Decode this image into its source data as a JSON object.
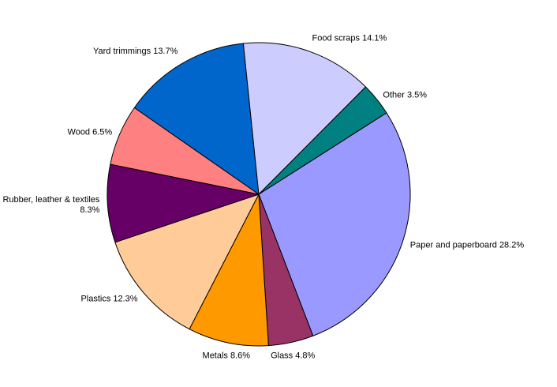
{
  "chart_data": {
    "type": "pie",
    "title": "",
    "slices": [
      {
        "label": "Paper and paperboard 28.2%",
        "value": 28.2,
        "color": "#9999ff"
      },
      {
        "label": "Glass 4.8%",
        "value": 4.8,
        "color": "#993366"
      },
      {
        "label": "Metals 8.6%",
        "value": 8.6,
        "color": "#ff9900"
      },
      {
        "label": "Plastics 12.3%",
        "value": 12.3,
        "color": "#ffcc99"
      },
      {
        "label": "Rubber, leather & textiles 8.3%",
        "label_lines": [
          "Rubber, leather & textiles",
          "8.3%"
        ],
        "value": 8.3,
        "color": "#660066"
      },
      {
        "label": "Wood 6.5%",
        "value": 6.5,
        "color": "#ff8080"
      },
      {
        "label": "Yard trimmings 13.7%",
        "value": 13.7,
        "color": "#0066cc"
      },
      {
        "label": "Food scraps 14.1%",
        "value": 14.1,
        "color": "#ccccff"
      },
      {
        "label": "Other 3.5%",
        "value": 3.5,
        "color": "#008080"
      }
    ],
    "start_angle_deg": 57.5,
    "direction": "clockwise",
    "legend": "none",
    "outline_color": "#000000"
  }
}
